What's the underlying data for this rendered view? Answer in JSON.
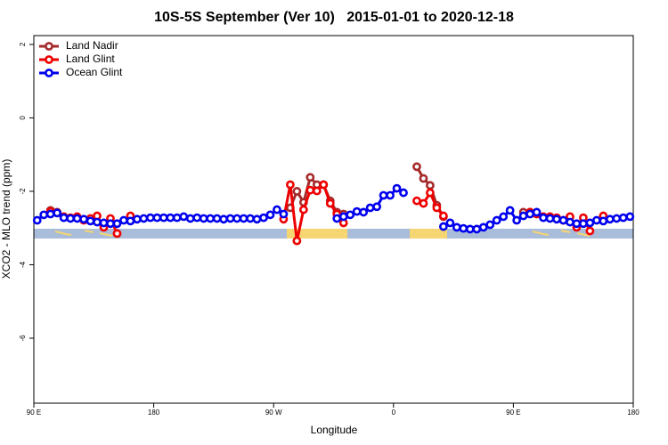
{
  "chart_data": {
    "type": "line",
    "title": "10S-5S September (Ver 10)   2015-01-01 to 2020-12-18",
    "xlabel": "Longitude",
    "ylabel": "XCO2 - MLO trend (ppm)",
    "xlim": [
      90,
      540
    ],
    "ylim": [
      -7.77,
      2.24
    ],
    "xticks": [
      {
        "value": 90,
        "label": "90 E"
      },
      180,
      {
        "value": 270,
        "label": "90 W"
      },
      {
        "value": 360,
        "label": "0"
      },
      {
        "value": 450,
        "label": "90 E"
      },
      {
        "value": 540,
        "label": "180"
      }
    ],
    "yticks": [
      2,
      0,
      -2,
      -4,
      -6
    ],
    "legend": "top-left",
    "x": [
      92.5,
      97.5,
      102.5,
      107.5,
      112.5,
      117.5,
      122.5,
      127.5,
      132.5,
      137.5,
      142.5,
      147.5,
      152.5,
      157.5,
      162.5,
      167.5,
      172.5,
      177.5,
      182.5,
      187.5,
      192.5,
      197.5,
      202.5,
      207.5,
      212.5,
      217.5,
      222.5,
      227.5,
      232.5,
      237.5,
      242.5,
      247.5,
      252.5,
      257.5,
      262.5,
      267.5,
      272.5,
      277.5,
      282.5,
      287.5,
      292.5,
      297.5,
      302.5,
      307.5,
      312.5,
      317.5,
      322.5,
      327.5,
      332.5,
      337.5,
      342.5,
      347.5,
      352.5,
      357.5,
      362.5,
      367.5,
      372.5,
      377.5,
      382.5,
      387.5,
      392.5,
      397.5,
      402.5,
      407.5,
      412.5,
      417.5,
      422.5,
      427.5,
      432.5,
      437.5,
      442.5,
      447.5,
      452.5,
      457.5,
      462.5,
      467.5,
      472.5,
      477.5,
      482.5,
      487.5,
      492.5,
      497.5,
      502.5,
      507.5,
      512.5,
      517.5,
      522.5,
      527.5,
      532.5,
      537.5
    ],
    "series": [
      {
        "name": "Land Nadir",
        "color": "#a52a2a",
        "values": [
          null,
          null,
          -2.52,
          -2.57,
          null,
          null,
          null,
          null,
          null,
          null,
          null,
          null,
          null,
          null,
          null,
          null,
          null,
          null,
          null,
          null,
          null,
          null,
          null,
          null,
          null,
          null,
          null,
          null,
          null,
          null,
          null,
          null,
          null,
          null,
          null,
          null,
          null,
          null,
          -2.45,
          -2.0,
          -2.3,
          -1.62,
          -1.82,
          -1.82,
          -2.26,
          -2.57,
          -2.62,
          null,
          null,
          null,
          null,
          null,
          null,
          null,
          null,
          null,
          null,
          -1.33,
          -1.65,
          -1.84,
          -2.38,
          -2.69,
          null,
          null,
          null,
          null,
          null,
          null,
          null,
          null,
          null,
          null,
          null,
          -2.57,
          -2.57,
          null,
          null,
          null,
          null,
          null,
          null,
          null,
          null,
          null,
          null,
          null,
          null,
          null,
          null,
          null
        ]
      },
      {
        "name": "Land Glint",
        "color": "#ee0000",
        "values": [
          null,
          null,
          -2.55,
          -2.59,
          -2.69,
          -2.72,
          -2.69,
          -2.79,
          -2.74,
          -2.67,
          -2.98,
          -2.74,
          -3.15,
          null,
          -2.67,
          null,
          null,
          null,
          null,
          null,
          null,
          null,
          null,
          null,
          null,
          null,
          null,
          null,
          null,
          null,
          null,
          null,
          null,
          null,
          null,
          null,
          null,
          -2.76,
          -1.82,
          -3.35,
          -2.5,
          -1.97,
          -1.99,
          -1.82,
          -2.33,
          -2.62,
          -2.86,
          null,
          null,
          null,
          null,
          null,
          null,
          null,
          null,
          null,
          null,
          -2.26,
          -2.33,
          -2.04,
          -2.45,
          -2.67,
          null,
          null,
          null,
          null,
          null,
          null,
          null,
          null,
          null,
          null,
          null,
          null,
          -2.57,
          -2.62,
          -2.69,
          -2.69,
          -2.72,
          -2.79,
          -2.69,
          -2.98,
          -2.72,
          -3.08,
          null,
          -2.67,
          null,
          null,
          null,
          null
        ]
      },
      {
        "name": "Ocean Glint",
        "color": "#0000ee",
        "values": [
          -2.79,
          -2.64,
          -2.62,
          -2.59,
          -2.72,
          -2.74,
          -2.74,
          -2.76,
          -2.81,
          -2.84,
          -2.86,
          -2.88,
          -2.88,
          -2.79,
          -2.81,
          -2.76,
          -2.74,
          -2.72,
          -2.72,
          -2.72,
          -2.72,
          -2.72,
          -2.69,
          -2.74,
          -2.72,
          -2.74,
          -2.74,
          -2.74,
          -2.76,
          -2.74,
          -2.74,
          -2.74,
          -2.74,
          -2.76,
          -2.72,
          -2.64,
          -2.5,
          -2.62,
          null,
          null,
          null,
          null,
          null,
          null,
          null,
          -2.74,
          -2.69,
          -2.64,
          -2.55,
          -2.57,
          -2.45,
          -2.42,
          -2.11,
          -2.11,
          -1.92,
          -2.04,
          null,
          null,
          null,
          null,
          null,
          -2.96,
          -2.86,
          -2.98,
          -3.01,
          -3.03,
          -3.03,
          -2.98,
          -2.91,
          -2.79,
          -2.69,
          -2.52,
          -2.79,
          -2.67,
          -2.62,
          -2.57,
          -2.72,
          -2.74,
          -2.76,
          -2.79,
          -2.84,
          -2.88,
          -2.88,
          -2.86,
          -2.79,
          -2.81,
          -2.76,
          -2.74,
          -2.72,
          -2.69
        ]
      }
    ]
  }
}
